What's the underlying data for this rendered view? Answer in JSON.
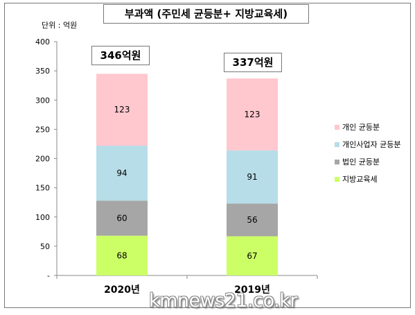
{
  "title": "부과액 (주민세 균등분+ 지방교육세)",
  "unit_label": "단위 : 억원",
  "watermark": "kmnews21.co.kr",
  "totals": [
    "346억원",
    "337억원"
  ],
  "chart_data": {
    "type": "bar",
    "stacked": true,
    "categories": [
      "2020년",
      "2019년"
    ],
    "series": [
      {
        "name": "지방교육세",
        "values": [
          68,
          67
        ],
        "color": "#ccff66"
      },
      {
        "name": "법인 균등분",
        "values": [
          60,
          56
        ],
        "color": "#a6a6a6"
      },
      {
        "name": "개인사업자 균등분",
        "values": [
          94,
          91
        ],
        "color": "#b7dde8"
      },
      {
        "name": "개인 균등분",
        "values": [
          123,
          123
        ],
        "color": "#ffc7ce"
      }
    ],
    "y_ticks": [
      "-",
      "50",
      "100",
      "150",
      "200",
      "250",
      "300",
      "350",
      "400"
    ],
    "ylim": [
      0,
      400
    ],
    "grid": false,
    "legend_position": "right",
    "legend_order": [
      "개인 균등분",
      "개인사업자 균등분",
      "법인 균등분",
      "지방교육세"
    ]
  }
}
